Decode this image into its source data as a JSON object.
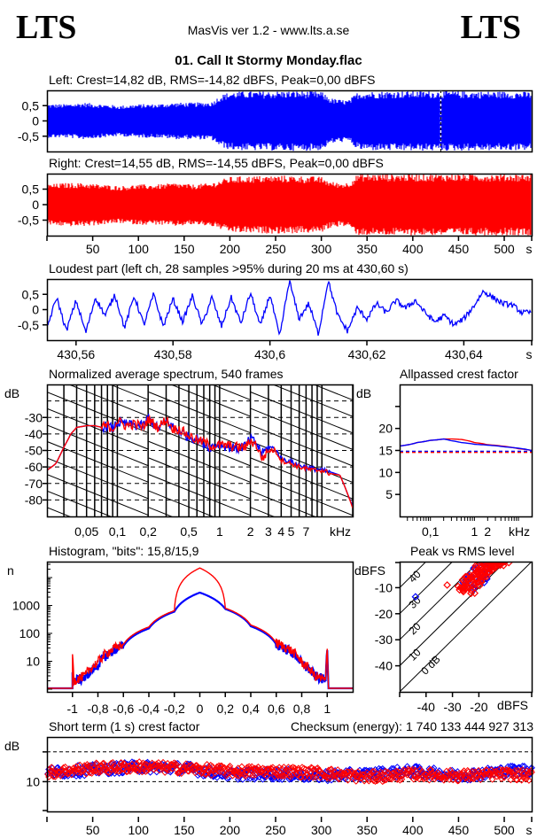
{
  "header": {
    "logo_left": "LTS",
    "logo_right": "LTS",
    "app_title": "MasVis ver 1.2 - www.lts.a.se",
    "file_title": "01. Call It Stormy Monday.flac"
  },
  "colors": {
    "left": "#0000ff",
    "right": "#ff0000",
    "axis": "#000000",
    "background": "#ffffff"
  },
  "chart_data": [
    {
      "id": "left_waveform",
      "type": "area",
      "title": "Left: Crest=14,82 dB, RMS=-14,82 dBFS, Peak=0,00 dBFS",
      "yticks": [
        "0,5",
        "0",
        "-0,5"
      ],
      "ytick_values": [
        0.5,
        0,
        -0.5
      ],
      "ylim": [
        -1,
        1
      ],
      "xlim": [
        0,
        530
      ],
      "marker_time_s": 430.6,
      "envelope": {
        "x": [
          0,
          20,
          40,
          60,
          80,
          100,
          120,
          140,
          160,
          180,
          190,
          200,
          220,
          240,
          260,
          280,
          300,
          310,
          320,
          330,
          340,
          360,
          380,
          400,
          420,
          440,
          460,
          480,
          500,
          520,
          530
        ],
        "peak": [
          0.55,
          0.55,
          0.6,
          0.55,
          0.5,
          0.55,
          0.55,
          0.6,
          0.6,
          0.62,
          0.85,
          0.95,
          0.97,
          0.97,
          0.98,
          0.98,
          0.96,
          0.75,
          0.7,
          0.68,
          0.95,
          0.97,
          0.98,
          0.98,
          0.98,
          0.98,
          0.97,
          0.97,
          0.97,
          0.96,
          0.95
        ]
      }
    },
    {
      "id": "right_waveform",
      "type": "area",
      "title": "Right: Crest=14,55 dB, RMS=-14,55 dBFS, Peak=0,00 dBFS",
      "yticks": [
        "0,5",
        "0",
        "-0,5"
      ],
      "ytick_values": [
        0.5,
        0,
        -0.5
      ],
      "ylim": [
        -1,
        1
      ],
      "xlim": [
        0,
        530
      ],
      "xticks": [
        "50",
        "100",
        "150",
        "200",
        "250",
        "300",
        "350",
        "400",
        "450",
        "500"
      ],
      "xtick_values": [
        50,
        100,
        150,
        200,
        250,
        300,
        350,
        400,
        450,
        500
      ],
      "xunit": "s",
      "envelope": {
        "x": [
          0,
          20,
          40,
          60,
          80,
          100,
          120,
          140,
          160,
          180,
          190,
          200,
          220,
          240,
          260,
          280,
          300,
          310,
          320,
          330,
          340,
          360,
          380,
          400,
          420,
          440,
          460,
          480,
          500,
          520,
          530
        ],
        "peak": [
          0.65,
          0.7,
          0.7,
          0.65,
          0.6,
          0.65,
          0.65,
          0.7,
          0.65,
          0.7,
          0.8,
          0.9,
          0.92,
          0.93,
          0.94,
          0.92,
          0.9,
          0.75,
          0.7,
          0.72,
          0.99,
          0.99,
          0.99,
          0.99,
          0.99,
          0.99,
          0.99,
          0.99,
          0.99,
          0.99,
          0.99
        ]
      }
    },
    {
      "id": "loudest_part",
      "type": "line",
      "title": "Loudest part (left  ch, 28 samples >95% during 20 ms at 430,60 s)",
      "yticks": [
        "0,5",
        "0",
        "-0,5"
      ],
      "ytick_values": [
        0.5,
        0,
        -0.5
      ],
      "ylim": [
        -1,
        1
      ],
      "xlim": [
        430.554,
        430.654
      ],
      "xticks": [
        "430,56",
        "430,58",
        "430,6",
        "430,62",
        "430,64"
      ],
      "xtick_values": [
        430.56,
        430.58,
        430.6,
        430.62,
        430.64
      ],
      "xunit": "s",
      "series": [
        {
          "name": "left",
          "x": [
            430.554,
            430.556,
            430.558,
            430.56,
            430.562,
            430.564,
            430.566,
            430.568,
            430.57,
            430.572,
            430.574,
            430.576,
            430.578,
            430.58,
            430.582,
            430.584,
            430.586,
            430.588,
            430.59,
            430.592,
            430.594,
            430.596,
            430.598,
            430.6,
            430.602,
            430.604,
            430.606,
            430.608,
            430.61,
            430.612,
            430.614,
            430.616,
            430.618,
            430.62,
            430.622,
            430.624,
            430.626,
            430.628,
            430.63,
            430.632,
            430.634,
            430.636,
            430.638,
            430.64,
            430.642,
            430.644,
            430.646,
            430.648,
            430.65,
            430.652,
            430.654
          ],
          "y": [
            -0.6,
            0.4,
            -0.7,
            0.3,
            -0.75,
            0.4,
            -0.2,
            0.5,
            -0.6,
            0.45,
            -0.5,
            0.5,
            -0.55,
            0.35,
            -0.4,
            0.45,
            -0.5,
            0.4,
            -0.55,
            0.4,
            -0.45,
            0.55,
            -0.55,
            0.5,
            -0.9,
            0.95,
            -0.3,
            0.2,
            -0.8,
            0.95,
            -0.2,
            -0.7,
            0.05,
            -0.3,
            0.2,
            -0.1,
            0.3,
            0.05,
            0.3,
            -0.1,
            -0.4,
            -0.2,
            -0.5,
            -0.3,
            0.1,
            0.6,
            0.4,
            0.2,
            0.15,
            -0.1,
            -0.1
          ]
        }
      ]
    },
    {
      "id": "spectrum",
      "type": "line",
      "title": "Normalized average spectrum, 540 frames",
      "ylabel": "dB",
      "yticks": [
        "-30",
        "-40",
        "-50",
        "-60",
        "-70",
        "-80"
      ],
      "ytick_values": [
        -30,
        -40,
        -50,
        -60,
        -70,
        -80
      ],
      "ylim": [
        -90,
        -10
      ],
      "xscale": "log",
      "xlim": [
        0.0205,
        20
      ],
      "xticks": [
        "0,05",
        "0,1",
        "0,2",
        "0,5",
        "1",
        "2",
        "3",
        "4",
        "5",
        "7",
        "kHz"
      ],
      "xtick_values": [
        0.05,
        0.1,
        0.2,
        0.5,
        1,
        2,
        3,
        4,
        5,
        7
      ],
      "xunit": "kHz",
      "grid": true,
      "series": [
        {
          "name": "left",
          "x": [
            0.0205,
            0.025,
            0.03,
            0.035,
            0.04,
            0.05,
            0.06,
            0.07,
            0.08,
            0.09,
            0.1,
            0.12,
            0.15,
            0.18,
            0.2,
            0.25,
            0.3,
            0.35,
            0.4,
            0.5,
            0.6,
            0.7,
            0.8,
            1,
            1.2,
            1.5,
            1.8,
            2,
            2.3,
            2.6,
            3,
            3.5,
            4,
            5,
            6,
            7,
            8,
            10,
            12,
            15,
            18,
            20
          ],
          "y": [
            -62,
            -58,
            -48,
            -40,
            -36,
            -35,
            -35,
            -36,
            -35,
            -37,
            -33,
            -34,
            -35,
            -35,
            -30,
            -37,
            -32,
            -36,
            -38,
            -42,
            -43,
            -46,
            -48,
            -46,
            -48,
            -49,
            -47,
            -43,
            -46,
            -52,
            -48,
            -49,
            -55,
            -57,
            -59,
            -60,
            -61,
            -62,
            -63,
            -65,
            -77,
            -84
          ]
        },
        {
          "name": "right",
          "x": [
            0.0205,
            0.025,
            0.03,
            0.035,
            0.04,
            0.05,
            0.06,
            0.07,
            0.08,
            0.09,
            0.1,
            0.12,
            0.15,
            0.18,
            0.2,
            0.25,
            0.3,
            0.35,
            0.4,
            0.5,
            0.6,
            0.7,
            0.8,
            1,
            1.2,
            1.5,
            1.8,
            2,
            2.3,
            2.6,
            3,
            3.5,
            4,
            5,
            6,
            7,
            8,
            10,
            12,
            15,
            18,
            20
          ],
          "y": [
            -62,
            -58,
            -48,
            -40,
            -36,
            -35,
            -35,
            -36,
            -35,
            -37,
            -32,
            -35,
            -34,
            -36,
            -31,
            -36,
            -31,
            -37,
            -37,
            -41,
            -44,
            -45,
            -47,
            -47,
            -47,
            -48,
            -48,
            -44,
            -47,
            -55,
            -50,
            -50,
            -56,
            -58,
            -60,
            -61,
            -62,
            -62,
            -64,
            -65,
            -77,
            -85
          ]
        }
      ]
    },
    {
      "id": "allpassed_crest",
      "type": "line",
      "title": "Allpassed crest factor",
      "ylabel": "dB",
      "yticks": [
        "20",
        "15",
        "10",
        "5"
      ],
      "ytick_values": [
        20,
        15,
        10,
        5
      ],
      "ylim": [
        0,
        30
      ],
      "xscale": "log",
      "xlim": [
        0.02,
        20
      ],
      "xticks": [
        "0,1",
        "1",
        "2",
        "kHz"
      ],
      "xtick_values": [
        0.1,
        1,
        2
      ],
      "xunit": "kHz",
      "series": [
        {
          "name": "left",
          "x": [
            0.02,
            0.05,
            0.1,
            0.2,
            0.3,
            0.5,
            1,
            2,
            5,
            10,
            20
          ],
          "y": [
            16,
            16.8,
            17.3,
            17.6,
            17.2,
            16.8,
            16.4,
            16.2,
            15.8,
            15.5,
            15
          ],
          "baseline": 14.82
        },
        {
          "name": "right",
          "x": [
            0.02,
            0.05,
            0.1,
            0.2,
            0.3,
            0.5,
            1,
            2,
            5,
            10,
            20
          ],
          "y": [
            16,
            16.8,
            17.3,
            17.6,
            17.6,
            17.5,
            16.8,
            16.3,
            15.9,
            15.4,
            15
          ],
          "baseline": 14.55
        }
      ]
    },
    {
      "id": "histogram",
      "type": "line",
      "title": "Histogram, \"bits\": 15,8/15,9",
      "ylabel": "n",
      "yscale": "log",
      "yticks": [
        "1000",
        "100",
        "10"
      ],
      "ytick_values": [
        1000,
        100,
        10
      ],
      "ylim": [
        1,
        30000
      ],
      "xlim": [
        -1.2,
        1.2
      ],
      "xticks": [
        "-1",
        "-0,8",
        "-0,6",
        "-0,4",
        "-0,2",
        "0",
        "0,2",
        "0,4",
        "0,6",
        "0,8",
        "1"
      ],
      "xtick_values": [
        -1,
        -0.8,
        -0.6,
        -0.4,
        -0.2,
        0,
        0.2,
        0.4,
        0.6,
        0.8,
        1
      ],
      "series": [
        {
          "name": "left",
          "x": [
            -1,
            -0.99,
            -0.9,
            -0.8,
            -0.6,
            -0.4,
            -0.2,
            0,
            0.2,
            0.4,
            0.6,
            0.8,
            0.9,
            0.99,
            1
          ],
          "y": [
            4,
            2,
            2.5,
            7,
            35,
            150,
            600,
            2900,
            750,
            180,
            40,
            8,
            3,
            2,
            25
          ]
        },
        {
          "name": "right",
          "x": [
            -1,
            -0.99,
            -0.9,
            -0.8,
            -0.6,
            -0.4,
            -0.2,
            0,
            0.2,
            0.4,
            0.6,
            0.8,
            0.9,
            0.99,
            1
          ],
          "y": [
            18,
            2,
            3,
            9,
            40,
            170,
            650,
            22000,
            800,
            200,
            45,
            9,
            3,
            2,
            28
          ]
        }
      ]
    },
    {
      "id": "peak_vs_rms",
      "type": "scatter",
      "title": "Peak vs RMS level",
      "ylabel": "dBFS",
      "xlabel": "dBFS",
      "yticks": [
        "-10",
        "-20",
        "-30",
        "-40"
      ],
      "ytick_values": [
        -10,
        -20,
        -30,
        -40
      ],
      "xticks": [
        "-40",
        "-30",
        "-20"
      ],
      "xtick_values": [
        -40,
        -30,
        -20
      ],
      "xlim": [
        -50,
        0
      ],
      "ylim": [
        -50,
        0
      ],
      "diagonal_labels": [
        "40",
        "30",
        "20",
        "10",
        "0 dB"
      ],
      "diagonal_values": [
        40,
        30,
        20,
        10,
        0
      ],
      "series": [
        {
          "name": "left",
          "x": [
            -44,
            -26,
            -24,
            -22,
            -21,
            -20,
            -19,
            -18,
            -17,
            -16,
            -15,
            -14,
            -13,
            -23,
            -22,
            -20,
            -18,
            -16,
            -19,
            -17
          ],
          "y": [
            -13.5,
            -8,
            -6,
            -5,
            -3,
            -2,
            -4,
            -1,
            0,
            -1,
            -2,
            0,
            0,
            -9,
            -10,
            -7,
            -8,
            -3,
            -5,
            -6
          ]
        },
        {
          "name": "right",
          "x": [
            -32,
            -27,
            -26,
            -25,
            -24,
            -23,
            -22,
            -21,
            -20,
            -19,
            -18,
            -17,
            -16,
            -15,
            -14,
            -13,
            -12,
            -11,
            -10,
            -24,
            -22,
            -20,
            -18,
            -16,
            -14,
            -21,
            -19,
            -17,
            -15,
            -25,
            -23
          ],
          "y": [
            -9,
            -10,
            -11,
            -8,
            -7,
            -6,
            -5,
            -4,
            -3,
            -2,
            -1,
            -1,
            0,
            0,
            -1,
            -1,
            0,
            0,
            0,
            -10,
            -9,
            -8,
            -6,
            -4,
            -2,
            -7,
            -5,
            -3,
            -1,
            -9,
            -11
          ]
        }
      ]
    },
    {
      "id": "short_term_crest",
      "type": "scatter",
      "title": "Short term (1 s) crest factor",
      "annotation": "Checksum (energy):  1 740 133 444 927 313",
      "ylabel": "dB",
      "yticks": [
        "10"
      ],
      "ytick_values": [
        10
      ],
      "ylim": [
        0,
        25
      ],
      "dashed_lines": [
        10,
        20
      ],
      "xlim": [
        0,
        530
      ],
      "xticks": [
        "50",
        "100",
        "150",
        "200",
        "250",
        "300",
        "350",
        "400",
        "450",
        "500"
      ],
      "xtick_values": [
        50,
        100,
        150,
        200,
        250,
        300,
        350,
        400,
        450,
        500
      ],
      "xunit": "s",
      "mean_trend": {
        "x": [
          0,
          50,
          100,
          150,
          200,
          250,
          300,
          350,
          400,
          450,
          500,
          530
        ],
        "left": [
          13,
          14,
          15,
          14.5,
          12.5,
          12.5,
          12,
          12.5,
          13.5,
          12,
          13.5,
          14
        ],
        "right": [
          13,
          14.5,
          15,
          14.5,
          13.5,
          13.5,
          13,
          11.5,
          12.5,
          12,
          12.5,
          12
        ]
      }
    }
  ]
}
